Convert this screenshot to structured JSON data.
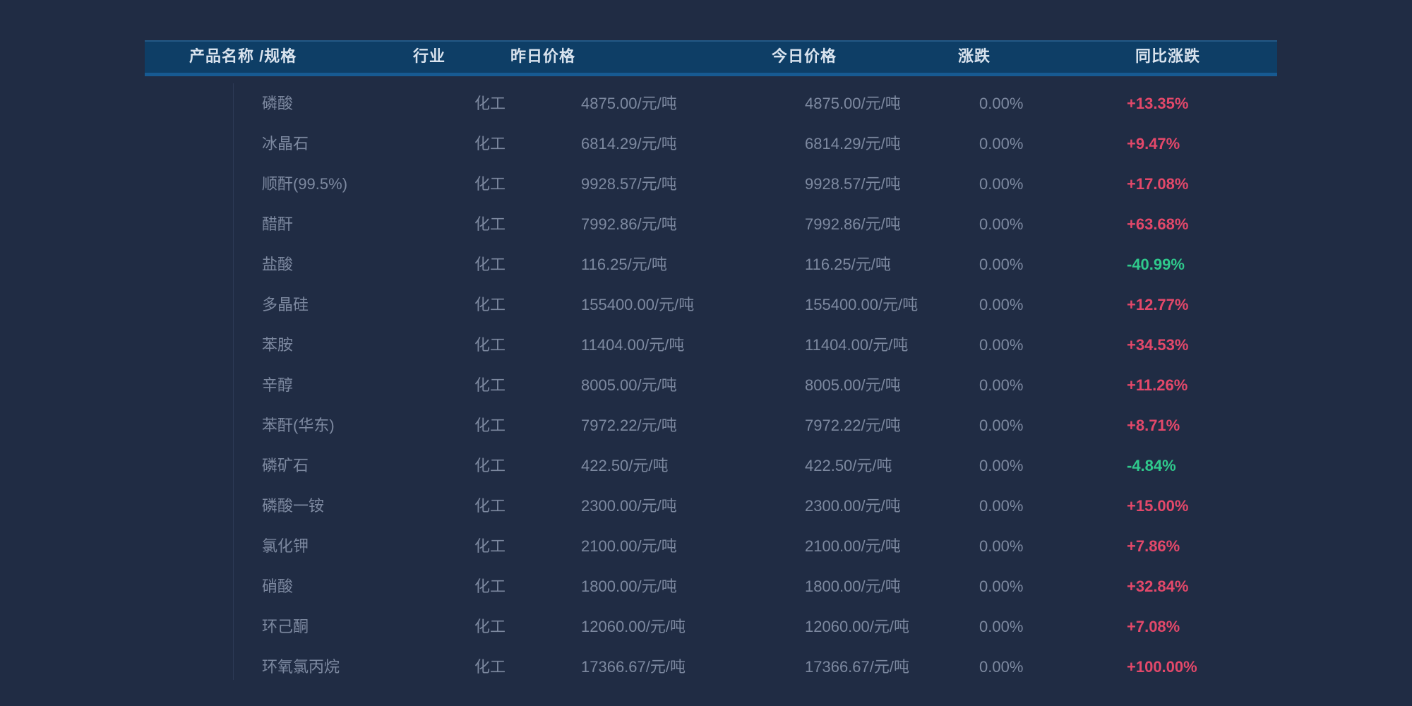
{
  "page": {
    "background_color": "#202c44"
  },
  "table": {
    "header": {
      "background_color": "#0e3e66",
      "accent_border_color": "#175a92",
      "text_color": "#d9e3ee",
      "columns": [
        {
          "key": "name",
          "label": "产品名称 /规格"
        },
        {
          "key": "industry",
          "label": "行业"
        },
        {
          "key": "yesterday",
          "label": "昨日价格"
        },
        {
          "key": "today",
          "label": "今日价格"
        },
        {
          "key": "change",
          "label": "涨跌"
        },
        {
          "key": "yoy",
          "label": "同比涨跌"
        }
      ]
    },
    "colors": {
      "cell_text": "#7d89a0",
      "yoy_up": "#e3486a",
      "yoy_down": "#2fc98c"
    },
    "rows": [
      {
        "name": "磷酸",
        "industry": "化工",
        "yesterday": "4875.00/元/吨",
        "today": "4875.00/元/吨",
        "change": "0.00%",
        "yoy": "+13.35%"
      },
      {
        "name": "冰晶石",
        "industry": "化工",
        "yesterday": "6814.29/元/吨",
        "today": "6814.29/元/吨",
        "change": "0.00%",
        "yoy": "+9.47%"
      },
      {
        "name": "顺酐(99.5%)",
        "industry": "化工",
        "yesterday": "9928.57/元/吨",
        "today": "9928.57/元/吨",
        "change": "0.00%",
        "yoy": "+17.08%"
      },
      {
        "name": "醋酐",
        "industry": "化工",
        "yesterday": "7992.86/元/吨",
        "today": "7992.86/元/吨",
        "change": "0.00%",
        "yoy": "+63.68%"
      },
      {
        "name": "盐酸",
        "industry": "化工",
        "yesterday": "116.25/元/吨",
        "today": "116.25/元/吨",
        "change": "0.00%",
        "yoy": "-40.99%"
      },
      {
        "name": "多晶硅",
        "industry": "化工",
        "yesterday": "155400.00/元/吨",
        "today": "155400.00/元/吨",
        "change": "0.00%",
        "yoy": "+12.77%"
      },
      {
        "name": "苯胺",
        "industry": "化工",
        "yesterday": "11404.00/元/吨",
        "today": "11404.00/元/吨",
        "change": "0.00%",
        "yoy": "+34.53%"
      },
      {
        "name": "辛醇",
        "industry": "化工",
        "yesterday": "8005.00/元/吨",
        "today": "8005.00/元/吨",
        "change": "0.00%",
        "yoy": "+11.26%"
      },
      {
        "name": "苯酐(华东)",
        "industry": "化工",
        "yesterday": "7972.22/元/吨",
        "today": "7972.22/元/吨",
        "change": "0.00%",
        "yoy": "+8.71%"
      },
      {
        "name": "磷矿石",
        "industry": "化工",
        "yesterday": "422.50/元/吨",
        "today": "422.50/元/吨",
        "change": "0.00%",
        "yoy": "-4.84%"
      },
      {
        "name": "磷酸一铵",
        "industry": "化工",
        "yesterday": "2300.00/元/吨",
        "today": "2300.00/元/吨",
        "change": "0.00%",
        "yoy": "+15.00%"
      },
      {
        "name": "氯化钾",
        "industry": "化工",
        "yesterday": "2100.00/元/吨",
        "today": "2100.00/元/吨",
        "change": "0.00%",
        "yoy": "+7.86%"
      },
      {
        "name": "硝酸",
        "industry": "化工",
        "yesterday": "1800.00/元/吨",
        "today": "1800.00/元/吨",
        "change": "0.00%",
        "yoy": "+32.84%"
      },
      {
        "name": "环己酮",
        "industry": "化工",
        "yesterday": "12060.00/元/吨",
        "today": "12060.00/元/吨",
        "change": "0.00%",
        "yoy": "+7.08%"
      },
      {
        "name": "环氧氯丙烷",
        "industry": "化工",
        "yesterday": "17366.67/元/吨",
        "today": "17366.67/元/吨",
        "change": "0.00%",
        "yoy": "+100.00%"
      }
    ]
  }
}
